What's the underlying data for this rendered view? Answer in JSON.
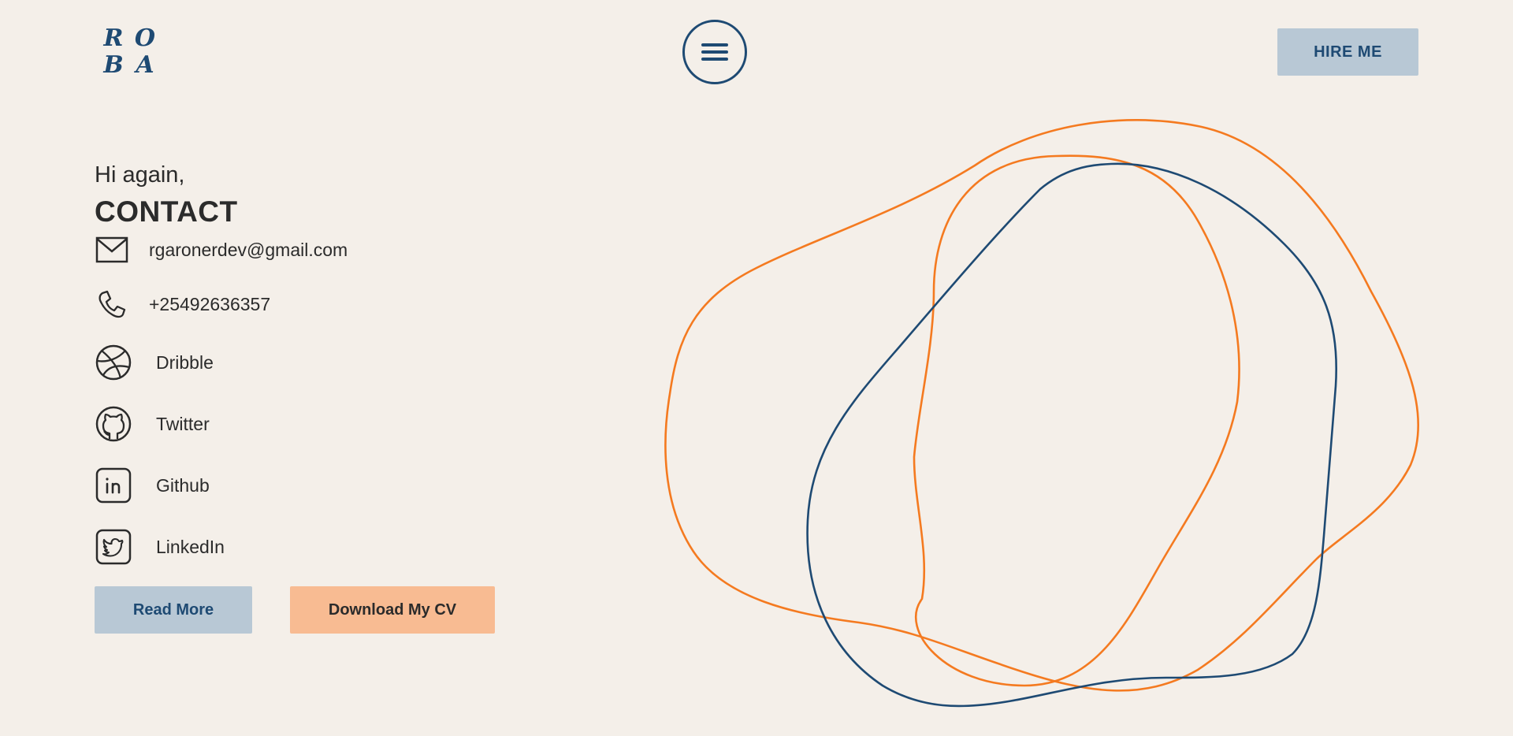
{
  "header": {
    "logo_letters": [
      "R",
      "O",
      "B",
      "A"
    ],
    "menu_icon": "hamburger-menu-icon",
    "hire_label": "HIRE ME"
  },
  "contact": {
    "greeting": "Hi again,",
    "title": "CONTACT",
    "email": {
      "icon": "envelope-icon",
      "text": "rgaronerdev@gmail.com"
    },
    "phone": {
      "icon": "phone-icon",
      "text": "+25492636357"
    },
    "social": [
      {
        "icon": "dribbble-icon",
        "label": "Dribble"
      },
      {
        "icon": "github-icon",
        "label": "Twitter"
      },
      {
        "icon": "linkedin-icon",
        "label": "Github"
      },
      {
        "icon": "twitter-icon",
        "label": "LinkedIn"
      }
    ]
  },
  "actions": {
    "read_more": "Read More",
    "download_cv": "Download My CV"
  },
  "colors": {
    "background": "#f4efe9",
    "primary_blue": "#1e4a73",
    "accent_orange": "#f47a20",
    "button_blue_bg": "#b8c8d5",
    "button_orange_bg": "#f8bb92"
  }
}
